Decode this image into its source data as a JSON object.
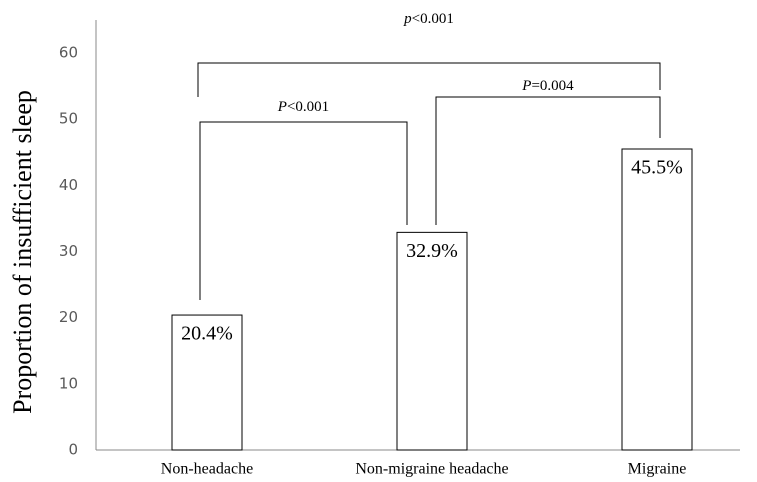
{
  "chart_data": {
    "type": "bar",
    "y_label": "Proportion of insufficient sleep",
    "categories": [
      "Non-headache",
      "Non-migraine headache",
      "Migraine"
    ],
    "values": [
      20.4,
      32.9,
      45.5
    ],
    "value_labels": [
      "20.4%",
      "32.9%",
      "45.5%"
    ],
    "color": "#ffffff",
    "ylim": [
      0,
      65
    ],
    "yticks": [
      0,
      10,
      20,
      30,
      40,
      50,
      60
    ],
    "grid": false,
    "annotations": [
      "P<0.001",
      "P=0.004",
      "p<0.001"
    ]
  }
}
